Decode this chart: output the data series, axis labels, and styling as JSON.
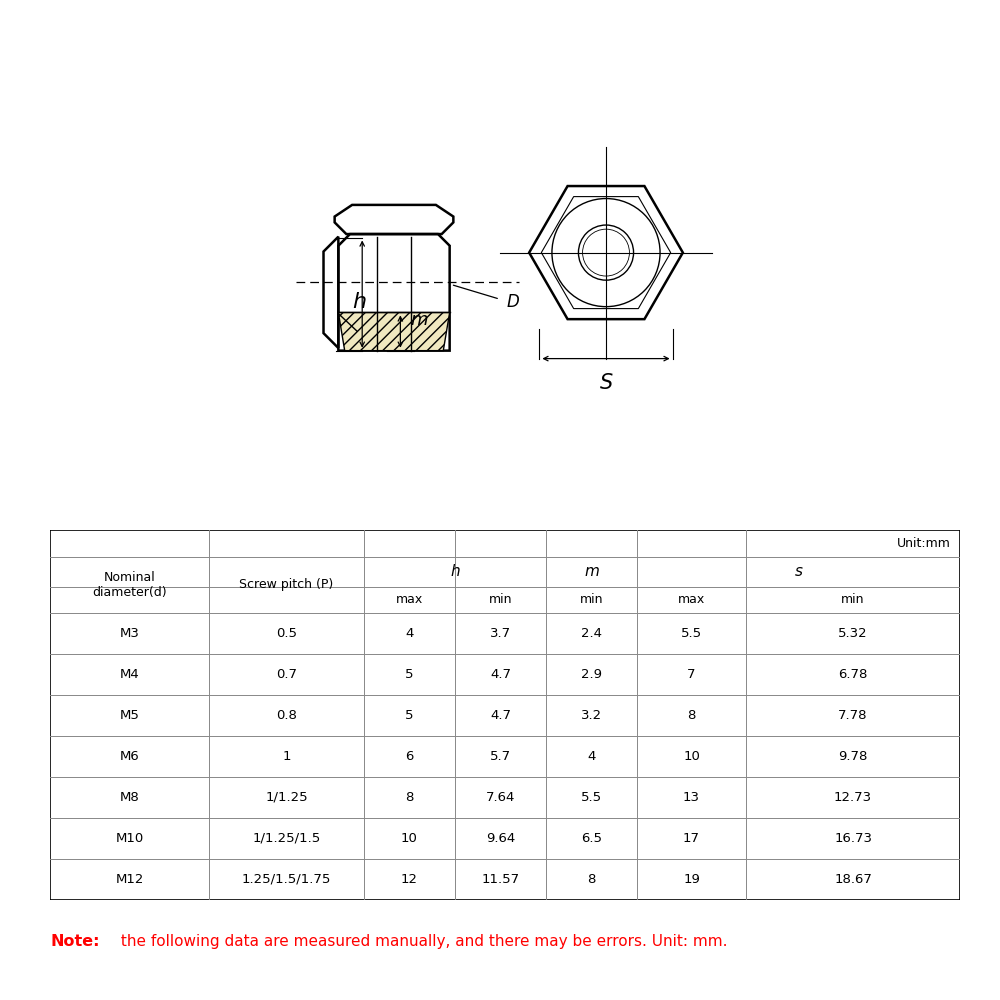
{
  "background_color": "#ffffff",
  "note_bold": "Note:",
  "note_text": " the following data are measured manually, and there may be errors. Unit: mm.",
  "note_color_bold": "#ff0000",
  "note_color_text": "#ff0000",
  "unit_label": "Unit:mm",
  "table_data": [
    [
      "M3",
      "0.5",
      "4",
      "3.7",
      "2.4",
      "5.5",
      "5.32"
    ],
    [
      "M4",
      "0.7",
      "5",
      "4.7",
      "2.9",
      "7",
      "6.78"
    ],
    [
      "M5",
      "0.8",
      "5",
      "4.7",
      "3.2",
      "8",
      "7.78"
    ],
    [
      "M6",
      "1",
      "6",
      "5.7",
      "4",
      "10",
      "9.78"
    ],
    [
      "M8",
      "1/1.25",
      "8",
      "7.64",
      "5.5",
      "13",
      "12.73"
    ],
    [
      "M10",
      "1/1.25/1.5",
      "10",
      "9.64",
      "6.5",
      "17",
      "16.73"
    ],
    [
      "M12",
      "1.25/1.5/1.75",
      "12",
      "11.57",
      "8",
      "19",
      "18.67"
    ]
  ]
}
